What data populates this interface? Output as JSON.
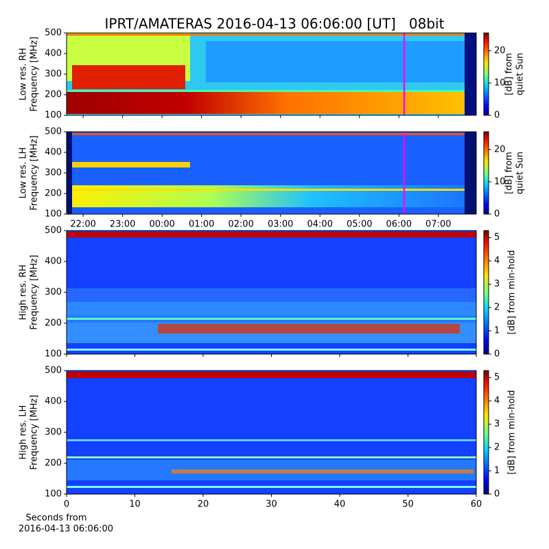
{
  "chart_data": [
    {
      "type": "heatmap",
      "title": "IPRT/AMATERAS 2016-04-13 06:06:00 [UT]   08bit",
      "ylabel": [
        "Low res. RH",
        "Frequency [MHz]"
      ],
      "ylim": [
        100,
        500
      ],
      "yticks": [
        100,
        200,
        300,
        400,
        500
      ],
      "colormap": "jet",
      "colorbar": {
        "label": [
          "[dB] from",
          "quiet Sun"
        ],
        "lim": [
          0,
          25.5
        ],
        "ticks": [
          0,
          10,
          20
        ]
      }
    },
    {
      "type": "heatmap",
      "ylabel": [
        "Low res. LH",
        "Frequency [MHz]"
      ],
      "ylim": [
        100,
        500
      ],
      "yticks": [
        100,
        200,
        300,
        400,
        500
      ],
      "xlim": [
        21.58,
        31.96
      ],
      "xticks": [
        {
          "value": 22,
          "label": "22:00"
        },
        {
          "value": 23,
          "label": "23:00"
        },
        {
          "value": 24,
          "label": "00:00"
        },
        {
          "value": 25,
          "label": "01:00"
        },
        {
          "value": 26,
          "label": "02:00"
        },
        {
          "value": 27,
          "label": "03:00"
        },
        {
          "value": 28,
          "label": "04:00"
        },
        {
          "value": 29,
          "label": "05:00"
        },
        {
          "value": 30,
          "label": "06:00"
        },
        {
          "value": 31,
          "label": "07:00"
        }
      ],
      "colormap": "jet",
      "colorbar": {
        "label": [
          "[dB] from",
          "quiet Sun"
        ],
        "lim": [
          0,
          25.5
        ],
        "ticks": [
          0,
          10,
          20
        ]
      }
    },
    {
      "type": "heatmap",
      "ylabel": [
        "High res. RH",
        "Frequency [MHz]"
      ],
      "ylim": [
        100,
        500
      ],
      "yticks": [
        100,
        200,
        300,
        400,
        500
      ],
      "colormap": "jet",
      "colorbar": {
        "label": [
          "[dB] from min-hold"
        ],
        "lim": [
          0,
          5.3
        ],
        "ticks": [
          0,
          1,
          2,
          3,
          4,
          5
        ]
      }
    },
    {
      "type": "heatmap",
      "ylabel": [
        "High res. LH",
        "Frequency [MHz]"
      ],
      "ylim": [
        100,
        500
      ],
      "yticks": [
        100,
        200,
        300,
        400,
        500
      ],
      "xlim": [
        0,
        60
      ],
      "xticks": [
        0,
        10,
        20,
        30,
        40,
        50,
        60
      ],
      "xlabel": [
        "Seconds from",
        "2016-04-13 06:06:00"
      ],
      "colormap": "jet",
      "colorbar": {
        "label": [
          "[dB] from min-hold"
        ],
        "lim": [
          0,
          5.3
        ],
        "ticks": [
          0,
          1,
          2,
          3,
          4,
          5
        ]
      }
    }
  ]
}
